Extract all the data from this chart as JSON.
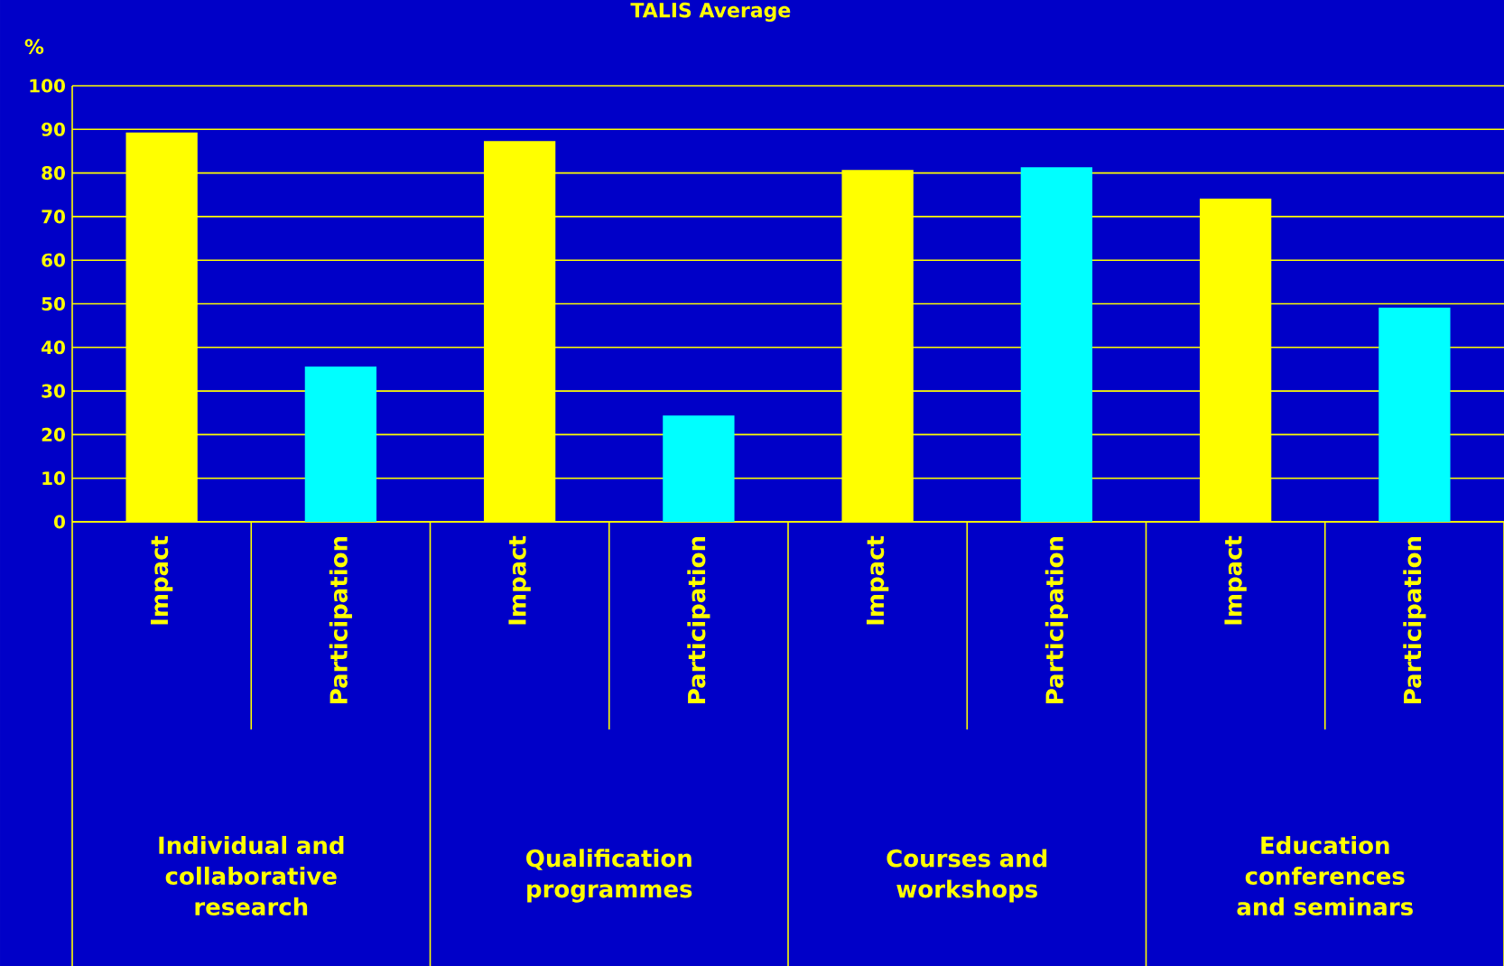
{
  "chart_data": {
    "type": "bar",
    "title": "TALIS Average",
    "ylabel": "%",
    "categories": [
      "Impact",
      "Participation",
      "Impact",
      "Participation",
      "Impact",
      "Participation",
      "Impact",
      "Participation"
    ],
    "values": [
      89.3,
      35.6,
      87.3,
      24.4,
      80.7,
      81.3,
      74.1,
      49.1
    ],
    "colors": [
      "#ffff00",
      "#00ffff",
      "#ffff00",
      "#00ffff",
      "#ffff00",
      "#00ffff",
      "#ffff00",
      "#00ffff"
    ],
    "ylim": [
      0,
      100
    ],
    "yticks": [
      0,
      10,
      20,
      30,
      40,
      50,
      60,
      70,
      80,
      90,
      100
    ],
    "grid": "y",
    "annotations": [
      "Individual and collaborative research",
      "Qualification programmes",
      "Courses and workshops",
      "Education conferences and seminars"
    ]
  }
}
